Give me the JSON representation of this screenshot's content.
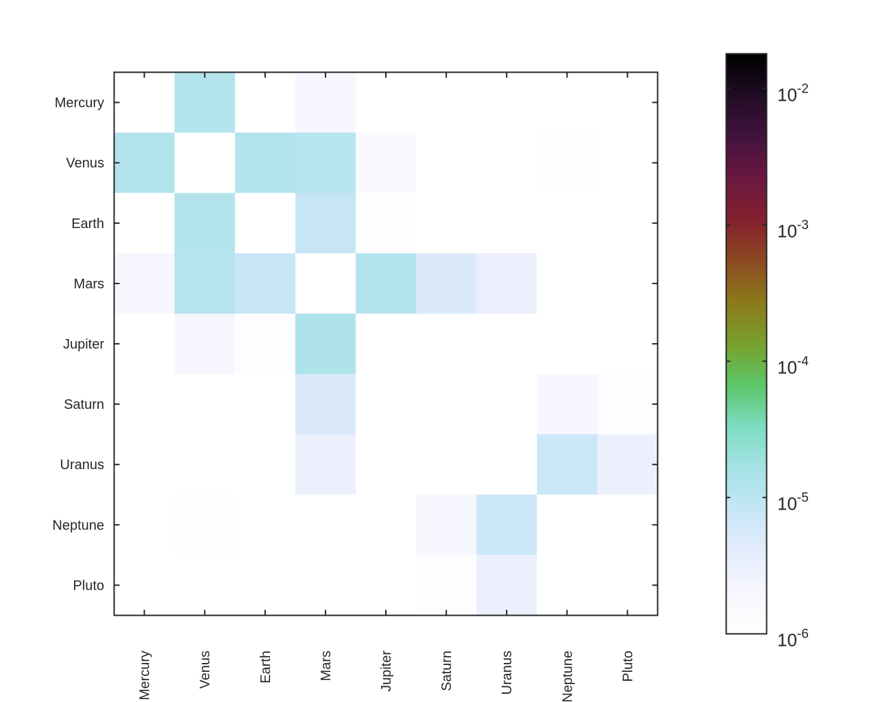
{
  "chart_data": {
    "type": "heatmap",
    "title": "",
    "xlabel": "",
    "ylabel": "",
    "categories": [
      "Mercury",
      "Venus",
      "Earth",
      "Mars",
      "Jupiter",
      "Saturn",
      "Uranus",
      "Neptune",
      "Pluto"
    ],
    "x": [
      "Mercury",
      "Venus",
      "Earth",
      "Mars",
      "Jupiter",
      "Saturn",
      "Uranus",
      "Neptune",
      "Pluto"
    ],
    "y": [
      "Mercury",
      "Venus",
      "Earth",
      "Mars",
      "Jupiter",
      "Saturn",
      "Uranus",
      "Neptune",
      "Pluto"
    ],
    "values": [
      [
        0,
        1.2e-05,
        0,
        2e-06,
        0,
        0,
        0,
        0,
        0
      ],
      [
        1.2e-05,
        0,
        1.2e-05,
        1.1e-05,
        1.6e-06,
        0,
        0,
        1.2e-06,
        0
      ],
      [
        0,
        1.2e-05,
        0,
        8e-06,
        1.2e-06,
        0,
        0,
        0,
        0
      ],
      [
        2e-06,
        1.1e-05,
        8e-06,
        0,
        1.2e-05,
        5e-06,
        3e-06,
        0,
        0
      ],
      [
        0,
        2e-06,
        1.2e-06,
        1.3e-05,
        0,
        0,
        0,
        0,
        0
      ],
      [
        0,
        0,
        0,
        5e-06,
        0,
        0,
        0,
        2e-06,
        1.2e-06
      ],
      [
        0,
        0,
        0,
        3e-06,
        0,
        0,
        0,
        7e-06,
        3e-06
      ],
      [
        0,
        1.2e-06,
        0,
        0,
        0,
        2e-06,
        7e-06,
        0,
        0
      ],
      [
        0,
        0,
        0,
        0,
        0,
        1.2e-06,
        3e-06,
        0,
        0
      ]
    ],
    "colorbar": {
      "scale": "log",
      "range": [
        1e-06,
        0.018
      ],
      "tick_values": [
        1e-06,
        1e-05,
        0.0001,
        0.001,
        0.01
      ],
      "tick_base": "10",
      "tick_exponents": [
        "-6",
        "-5",
        "-4",
        "-3",
        "-2"
      ],
      "colormap": [
        "#ffffff",
        "#f6f6fe",
        "#e4ecfc",
        "#c5e6f6",
        "#a4e2e4",
        "#7edcc2",
        "#5cc66a",
        "#78a02c",
        "#8c7a1a",
        "#8c4a22",
        "#84202e",
        "#6a1840",
        "#42123e",
        "#200c24",
        "#000000"
      ]
    },
    "grid": false,
    "legend": "colorbar-right"
  }
}
